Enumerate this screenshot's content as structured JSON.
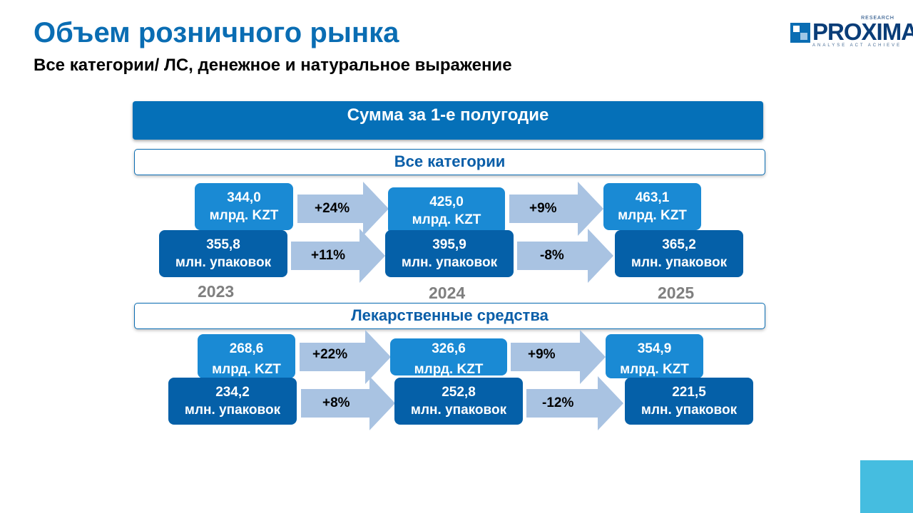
{
  "title": "Объем розничного рынка",
  "subtitle": "Все категории/ ЛС, денежное и натуральное выражение",
  "logo": {
    "text": "PROXIMA",
    "research": "RESEARCH",
    "tagline": "ANALYSE  ACT  ACHIEVE"
  },
  "banner": "Сумма за 1-е полугодие",
  "years": [
    "2023",
    "2024",
    "2025"
  ],
  "sections": [
    {
      "label": "Все категории",
      "money": {
        "values": [
          "344,0",
          "425,0",
          "463,1"
        ],
        "unit": "млрд. KZT",
        "changes": [
          "+24%",
          "+9%"
        ]
      },
      "packs": {
        "values": [
          "355,8",
          "395,9",
          "365,2"
        ],
        "unit": "млн. упаковок",
        "changes": [
          "+11%",
          "-8%"
        ]
      }
    },
    {
      "label": "Лекарственные средства",
      "money": {
        "values": [
          "268,6",
          "326,6",
          "354,9"
        ],
        "unit": "млрд. KZT",
        "changes": [
          "+22%",
          "+9%"
        ]
      },
      "packs": {
        "values": [
          "234,2",
          "252,8",
          "221,5"
        ],
        "unit": "млн. упаковок",
        "changes": [
          "+8%",
          "-12%"
        ]
      }
    }
  ],
  "colors": {
    "title": "#0a6db3",
    "banner": "#0570b8",
    "box_light": "#1a8ad4",
    "box_dark": "#0560a8",
    "arrow": "#a9c3e2",
    "year": "#7f7f7f",
    "corner": "#45bde0"
  }
}
